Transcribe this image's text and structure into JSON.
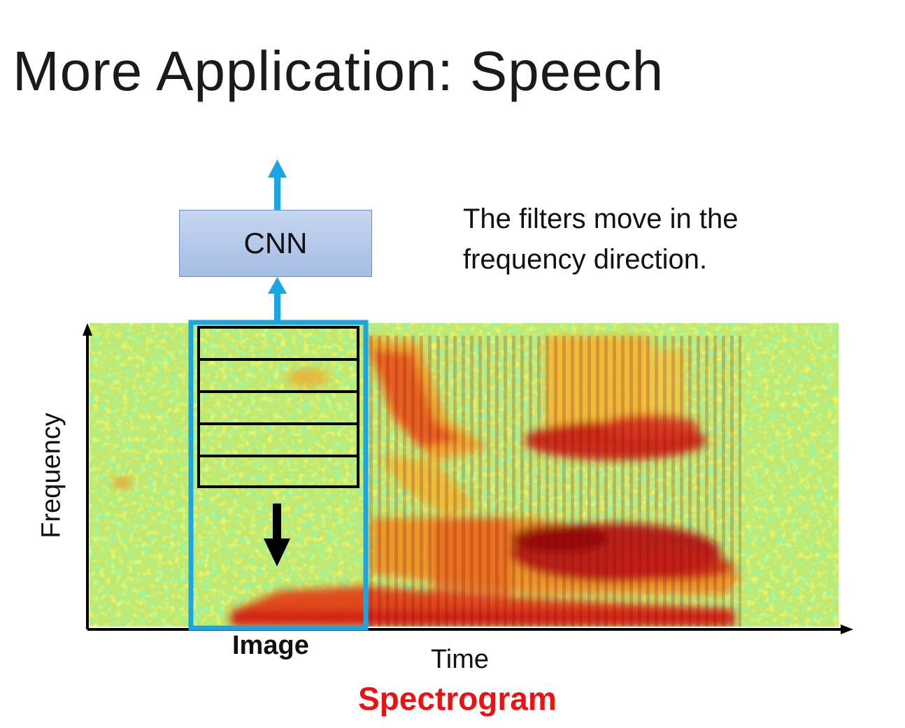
{
  "slide": {
    "title": "More Application: Speech"
  },
  "diagram": {
    "cnn_label": "CNN",
    "note_line1": "The filters move in the",
    "note_line2": "frequency direction.",
    "image_label": "Image",
    "x_axis_label": "Time",
    "y_axis_label": "Frequency",
    "spectrogram_label": "Spectrogram",
    "colors": {
      "accent_blue": "#1aa6e4",
      "spectrogram_label": "#ee1111",
      "cnn_fill": "#b7cbe9",
      "filter_border": "#000000"
    },
    "filter_count": 5
  }
}
